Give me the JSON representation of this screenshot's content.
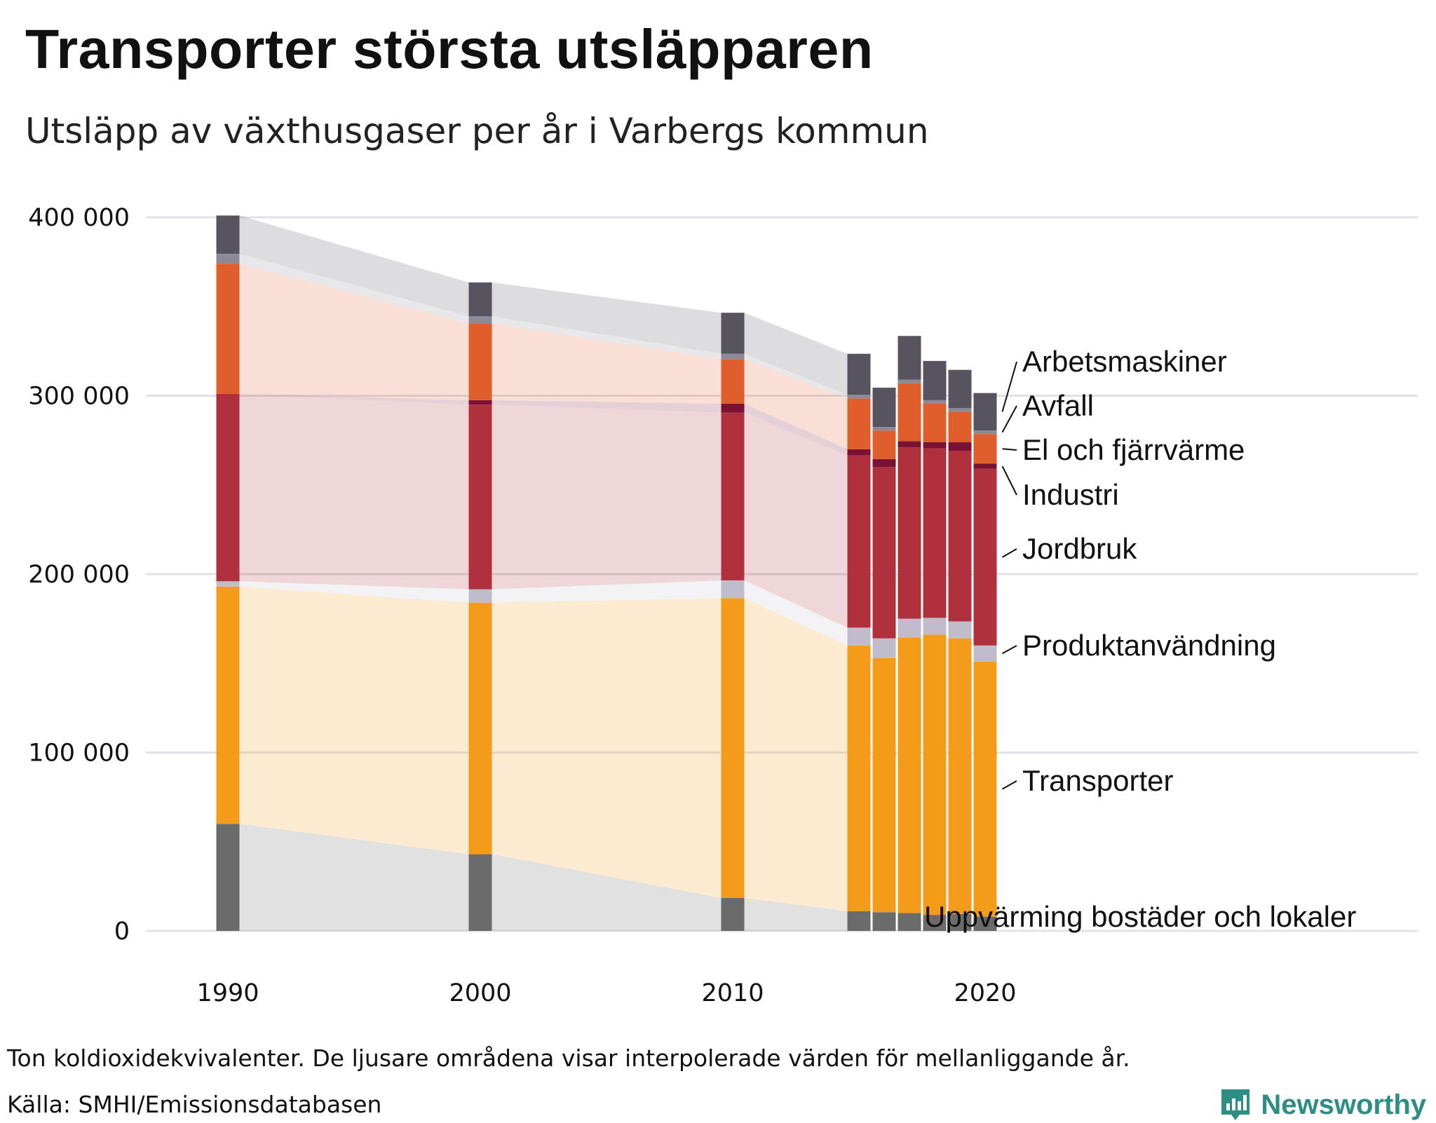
{
  "title": "Transporter största utsläpparen",
  "subtitle": "Utsläpp av växthusgaser per år i Varbergs kommun",
  "footnote": "Ton koldioxidekvivalenter. De ljusare områdena visar interpolerade värden för mellanliggande år.",
  "source": "Källa: SMHI/Emissionsdatabasen",
  "brand": "Newsworthy",
  "colors": {
    "Uppvärming bostäder och lokaler": "#6b6b6b",
    "Transporter": "#f59b1a",
    "Produktanvändning": "#c1bccb",
    "Jordbruk": "#b0313d",
    "Industri": "#7a1233",
    "El och fjärrvärme": "#e05e2b",
    "Avfall": "#8c8a96",
    "Arbetsmaskiner": "#57545f",
    "grid": "#e3e1e6",
    "brand": "#2f8e84"
  },
  "chart_data": {
    "type": "bar",
    "stacked": true,
    "ylim": [
      0,
      400000
    ],
    "yticks": [
      0,
      100000,
      200000,
      300000,
      400000
    ],
    "ytick_labels": [
      "0",
      "100 000",
      "200 000",
      "300 000",
      "400 000"
    ],
    "xticks": [
      1990,
      2000,
      2010,
      2020
    ],
    "xtick_labels": [
      "1990",
      "2000",
      "2010",
      "2020"
    ],
    "years": [
      1990,
      2000,
      2010,
      2015,
      2016,
      2017,
      2018,
      2019,
      2020
    ],
    "series": [
      {
        "name": "Uppvärming bostäder och lokaler",
        "values": [
          60000,
          43000,
          18500,
          11000,
          10500,
          10000,
          9000,
          9500,
          8000
        ]
      },
      {
        "name": "Transporter",
        "values": [
          133000,
          141000,
          168000,
          149000,
          142500,
          154500,
          157000,
          154500,
          143000
        ]
      },
      {
        "name": "Produktanvändning",
        "values": [
          3000,
          7500,
          10000,
          10000,
          11000,
          10500,
          9500,
          9500,
          9000
        ]
      },
      {
        "name": "Jordbruk",
        "values": [
          105000,
          103500,
          94000,
          96500,
          96000,
          96000,
          95000,
          95500,
          99000
        ]
      },
      {
        "name": "Industri",
        "values": [
          0,
          2500,
          5000,
          3500,
          4500,
          3500,
          3500,
          5000,
          3000
        ]
      },
      {
        "name": "El och fjärrvärme",
        "values": [
          73000,
          43000,
          25000,
          28500,
          16000,
          32500,
          21500,
          17000,
          16500
        ]
      },
      {
        "name": "Avfall",
        "values": [
          5500,
          4000,
          3000,
          2000,
          2000,
          2000,
          2000,
          2000,
          2000
        ]
      },
      {
        "name": "Arbetsmaskiner",
        "values": [
          21500,
          19000,
          23000,
          23000,
          22000,
          24500,
          22000,
          21500,
          21000
        ]
      }
    ],
    "interpolated_bands": true,
    "legend": "direct labels right of last bar",
    "legend_order_top_to_bottom": [
      "Arbetsmaskiner",
      "Avfall",
      "El och fjärrvärme",
      "Industri",
      "Jordbruk",
      "Produktanvändning",
      "Transporter",
      "Uppvärming bostäder och lokaler"
    ]
  }
}
